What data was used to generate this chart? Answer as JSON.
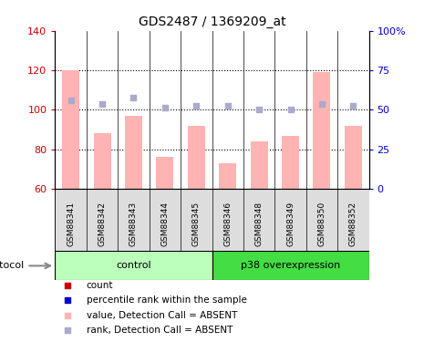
{
  "title": "GDS2487 / 1369209_at",
  "samples": [
    "GSM88341",
    "GSM88342",
    "GSM88343",
    "GSM88344",
    "GSM88345",
    "GSM88346",
    "GSM88348",
    "GSM88349",
    "GSM88350",
    "GSM88352"
  ],
  "bar_values": [
    120,
    88,
    97,
    76,
    92,
    73,
    84,
    87,
    119,
    92
  ],
  "rank_values": [
    105,
    103,
    106,
    101,
    102,
    102,
    100,
    100,
    103,
    102
  ],
  "ylim_left": [
    60,
    140
  ],
  "ylim_right": [
    0,
    100
  ],
  "yticks_left": [
    60,
    80,
    100,
    120,
    140
  ],
  "yticks_right": [
    0,
    25,
    50,
    75,
    100
  ],
  "ytick_labels_right": [
    "0",
    "25",
    "50",
    "75",
    "100%"
  ],
  "bar_color": "#FFB3B3",
  "rank_color": "#AAAACC",
  "left_axis_color": "#CC0000",
  "right_axis_color": "#0000CC",
  "groups": [
    {
      "label": "control",
      "start": 0,
      "end": 5,
      "color": "#BBFFBB"
    },
    {
      "label": "p38 overexpression",
      "start": 5,
      "end": 10,
      "color": "#44DD44"
    }
  ],
  "protocol_label": "protocol",
  "legend_items": [
    {
      "color": "#CC0000",
      "label": "count"
    },
    {
      "color": "#0000CC",
      "label": "percentile rank within the sample"
    },
    {
      "color": "#FFB3B3",
      "label": "value, Detection Call = ABSENT"
    },
    {
      "color": "#AAAACC",
      "label": "rank, Detection Call = ABSENT"
    }
  ],
  "bar_width": 0.55,
  "ybase": 60
}
